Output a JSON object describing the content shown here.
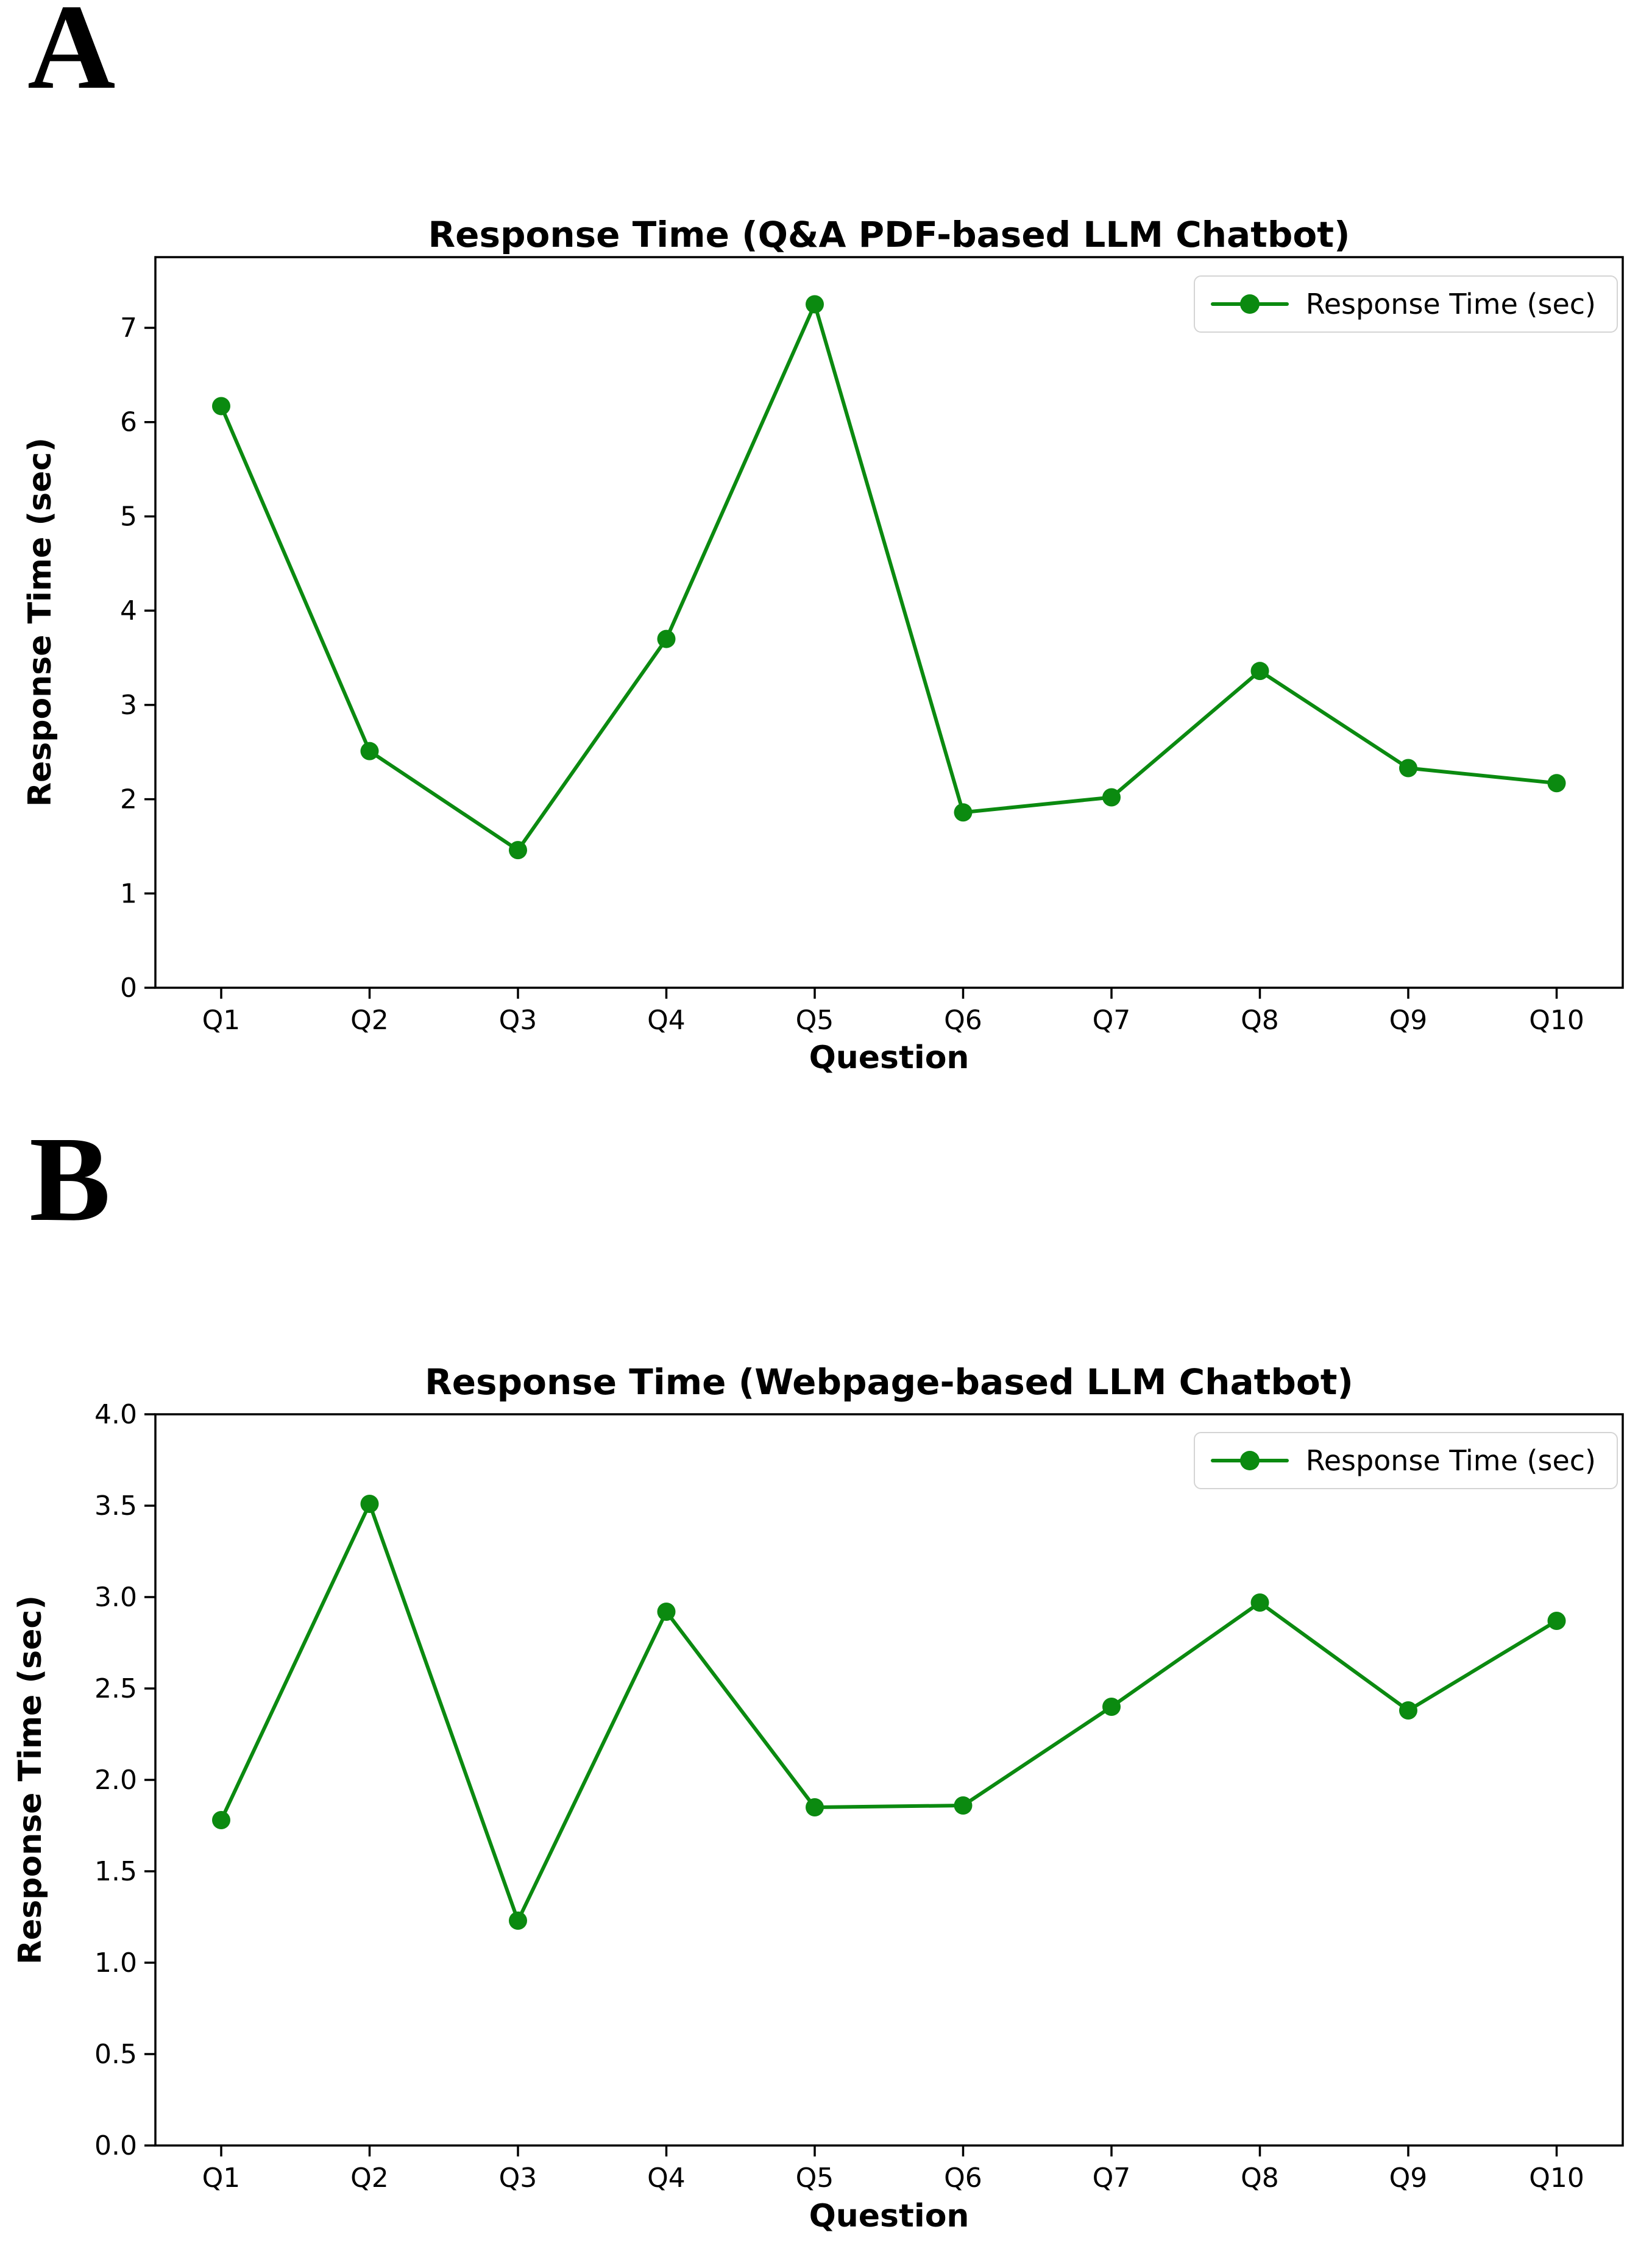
{
  "page": {
    "background": "#ffffff"
  },
  "panel_labels": [
    "A",
    "B"
  ],
  "colors": {
    "line_green": "#0b8a10",
    "axis_black": "#000000",
    "legend_border": "#d4d4d4"
  },
  "chart_data": [
    {
      "type": "line",
      "title": "Response Time (Q&A PDF-based LLM Chatbot)",
      "xlabel": "Question",
      "ylabel": "Response Time (sec)",
      "legend": [
        "Response Time (sec)"
      ],
      "legend_position": "upper right",
      "categories": [
        "Q1",
        "Q2",
        "Q3",
        "Q4",
        "Q5",
        "Q6",
        "Q7",
        "Q8",
        "Q9",
        "Q10"
      ],
      "series": [
        {
          "name": "Response Time (sec)",
          "values": [
            6.17,
            2.51,
            1.46,
            3.7,
            7.25,
            1.86,
            2.02,
            3.36,
            2.33,
            2.17
          ]
        }
      ],
      "ylim": [
        0,
        7.75
      ],
      "ytick_values": [
        0,
        1,
        2,
        3,
        4,
        5,
        6,
        7
      ],
      "ytick_labels": [
        "0",
        "1",
        "2",
        "3",
        "4",
        "5",
        "6",
        "7"
      ],
      "grid": false,
      "marker": "o",
      "line_color": "#0b8a10"
    },
    {
      "type": "line",
      "title": "Response Time (Webpage-based LLM Chatbot)",
      "xlabel": "Question",
      "ylabel": "Response Time (sec)",
      "legend": [
        "Response Time (sec)"
      ],
      "legend_position": "upper right",
      "categories": [
        "Q1",
        "Q2",
        "Q3",
        "Q4",
        "Q5",
        "Q6",
        "Q7",
        "Q8",
        "Q9",
        "Q10"
      ],
      "series": [
        {
          "name": "Response Time (sec)",
          "values": [
            1.78,
            3.51,
            1.23,
            2.92,
            1.85,
            1.86,
            2.4,
            2.97,
            2.38,
            2.87
          ]
        }
      ],
      "ylim": [
        0,
        4.0
      ],
      "ytick_values": [
        0,
        0.5,
        1.0,
        1.5,
        2.0,
        2.5,
        3.0,
        3.5,
        4.0
      ],
      "ytick_labels": [
        "0.0",
        "0.5",
        "1.0",
        "1.5",
        "2.0",
        "2.5",
        "3.0",
        "3.5",
        "4.0"
      ],
      "grid": false,
      "marker": "o",
      "line_color": "#0b8a10"
    }
  ]
}
